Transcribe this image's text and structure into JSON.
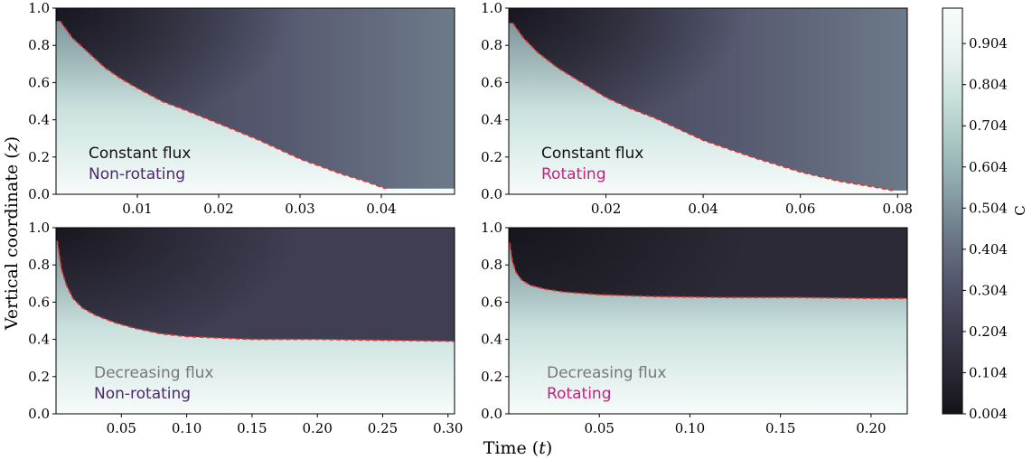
{
  "figure": {
    "ylabel_main": "Vertical coordinate (",
    "ylabel_var": "z",
    "ylabel_close": ")",
    "xlabel_main": "Time (",
    "xlabel_var": "t",
    "xlabel_close": ")"
  },
  "colorbar": {
    "label": "C",
    "ticks": [
      "0.904",
      "0.804",
      "0.704",
      "0.604",
      "0.504",
      "0.404",
      "0.304",
      "0.204",
      "0.104",
      "0.004"
    ],
    "range": [
      0.004,
      0.99
    ],
    "colors": [
      "#141219",
      "#2b2a36",
      "#3f3e52",
      "#55586f",
      "#6d7a89",
      "#8aa3aa",
      "#a8c5c2",
      "#c9e1dd",
      "#e8f3f1",
      "#f7fcfb"
    ]
  },
  "chart_data": [
    {
      "type": "heatmap",
      "id": "top-left",
      "flux_label": "Constant flux",
      "rotation_label": "Non-rotating",
      "flux_color": "#111111",
      "rotation_color": "#4a2a6a",
      "xlim": [
        0.0,
        0.049
      ],
      "ylim": [
        0.0,
        1.0
      ],
      "xticks": [
        0.01,
        0.02,
        0.03,
        0.04
      ],
      "xtick_labels": [
        "0.01",
        "0.02",
        "0.03",
        "0.04"
      ],
      "yticks": [
        0.0,
        0.2,
        0.4,
        0.6,
        0.8,
        1.0
      ],
      "ytick_labels": [
        "0.0",
        "0.2",
        "0.4",
        "0.6",
        "0.8",
        "1.0"
      ],
      "interface": {
        "t": [
          0.0005,
          0.002,
          0.004,
          0.006,
          0.008,
          0.01,
          0.013,
          0.016,
          0.02,
          0.025,
          0.03,
          0.035,
          0.038,
          0.0405
        ],
        "z": [
          0.93,
          0.84,
          0.76,
          0.68,
          0.62,
          0.57,
          0.5,
          0.45,
          0.38,
          0.29,
          0.19,
          0.11,
          0.07,
          0.03
        ]
      }
    },
    {
      "type": "heatmap",
      "id": "top-right",
      "flux_label": "Constant flux",
      "rotation_label": "Rotating",
      "flux_color": "#111111",
      "rotation_color": "#c8207e",
      "xlim": [
        0.0,
        0.082
      ],
      "ylim": [
        0.0,
        1.0
      ],
      "xticks": [
        0.02,
        0.04,
        0.06,
        0.08
      ],
      "xtick_labels": [
        "0.02",
        "0.04",
        "0.06",
        "0.08"
      ],
      "yticks": [
        0.0,
        0.2,
        0.4,
        0.6,
        0.8,
        1.0
      ],
      "ytick_labels": [
        "0.0",
        "0.2",
        "0.4",
        "0.6",
        "0.8",
        "1.0"
      ],
      "interface": {
        "t": [
          0.0008,
          0.003,
          0.006,
          0.01,
          0.015,
          0.02,
          0.025,
          0.03,
          0.04,
          0.05,
          0.06,
          0.068,
          0.075,
          0.079
        ],
        "z": [
          0.92,
          0.84,
          0.76,
          0.68,
          0.6,
          0.52,
          0.46,
          0.41,
          0.29,
          0.2,
          0.12,
          0.07,
          0.04,
          0.02
        ]
      }
    },
    {
      "type": "heatmap",
      "id": "bottom-left",
      "flux_label": "Decreasing flux",
      "rotation_label": "Non-rotating",
      "flux_color": "#777777",
      "rotation_color": "#4a2a6a",
      "xlim": [
        0.0,
        0.305
      ],
      "ylim": [
        0.0,
        1.0
      ],
      "xticks": [
        0.05,
        0.1,
        0.15,
        0.2,
        0.25,
        0.3
      ],
      "xtick_labels": [
        "0.05",
        "0.10",
        "0.15",
        "0.20",
        "0.25",
        "0.30"
      ],
      "yticks": [
        0.0,
        0.2,
        0.4,
        0.6,
        0.8,
        1.0
      ],
      "ytick_labels": [
        "0.0",
        "0.2",
        "0.4",
        "0.6",
        "0.8",
        "1.0"
      ],
      "interface": {
        "t": [
          0.001,
          0.004,
          0.008,
          0.013,
          0.02,
          0.03,
          0.045,
          0.06,
          0.08,
          0.1,
          0.15,
          0.2,
          0.25,
          0.305
        ],
        "z": [
          0.93,
          0.78,
          0.69,
          0.62,
          0.57,
          0.53,
          0.49,
          0.46,
          0.43,
          0.415,
          0.4,
          0.4,
          0.395,
          0.39
        ]
      }
    },
    {
      "type": "heatmap",
      "id": "bottom-right",
      "flux_label": "Decreasing flux",
      "rotation_label": "Rotating",
      "flux_color": "#777777",
      "rotation_color": "#c8207e",
      "xlim": [
        0.0,
        0.22
      ],
      "ylim": [
        0.0,
        1.0
      ],
      "xticks": [
        0.05,
        0.1,
        0.15,
        0.2
      ],
      "xtick_labels": [
        "0.05",
        "0.10",
        "0.15",
        "0.20"
      ],
      "yticks": [
        0.0,
        0.2,
        0.4,
        0.6,
        0.8,
        1.0
      ],
      "ytick_labels": [
        "0.0",
        "0.2",
        "0.4",
        "0.6",
        "0.8",
        "1.0"
      ],
      "interface": {
        "t": [
          0.0005,
          0.002,
          0.004,
          0.007,
          0.012,
          0.02,
          0.03,
          0.05,
          0.08,
          0.12,
          0.16,
          0.2,
          0.22
        ],
        "z": [
          0.92,
          0.82,
          0.76,
          0.72,
          0.69,
          0.67,
          0.655,
          0.64,
          0.63,
          0.625,
          0.625,
          0.62,
          0.62
        ]
      }
    }
  ]
}
